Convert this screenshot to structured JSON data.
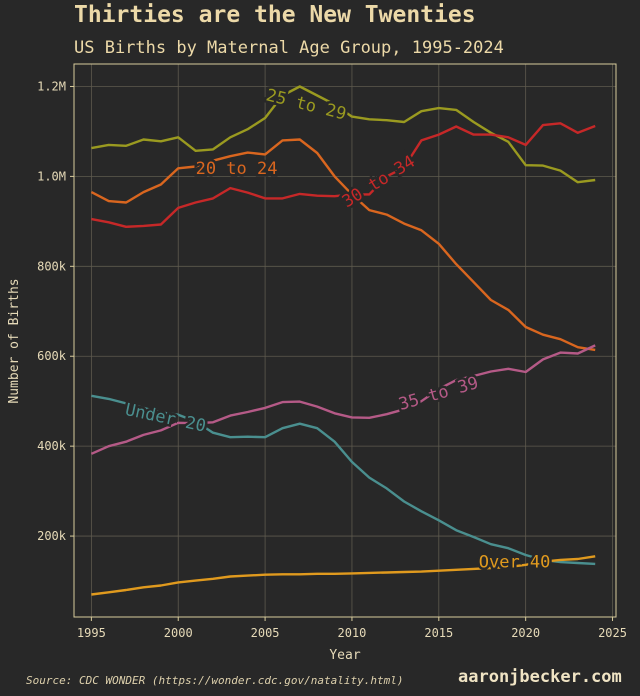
{
  "title": "Thirties are the New Twenties",
  "subtitle": "US Births by Maternal Age Group, 1995-2024",
  "source": "Source: CDC WONDER (https://wonder.cdc.gov/natality.html)",
  "brand": "aaronjbecker.com",
  "chart_data": {
    "type": "line",
    "xlabel": "Year",
    "ylabel": "Number of Births",
    "xlim": [
      1994,
      2025.2
    ],
    "ylim": [
      20000,
      1250000
    ],
    "xticks": [
      1995,
      2000,
      2005,
      2010,
      2015,
      2020,
      2025
    ],
    "yticks": [
      200000,
      400000,
      600000,
      800000,
      1000000,
      1200000
    ],
    "ytick_labels": [
      "200k",
      "400k",
      "600k",
      "800k",
      "1.0M",
      "1.2M"
    ],
    "grid": true,
    "background": "#282828",
    "grid_color": "#5e5a4e",
    "axis_color": "#d8cc9c",
    "x": [
      1995,
      1996,
      1997,
      1998,
      1999,
      2000,
      2001,
      2002,
      2003,
      2004,
      2005,
      2006,
      2007,
      2008,
      2009,
      2010,
      2011,
      2012,
      2013,
      2014,
      2015,
      2016,
      2017,
      2018,
      2019,
      2020,
      2021,
      2022,
      2023,
      2024
    ],
    "series": [
      {
        "name": "Under 20",
        "color": "#4a8f8f",
        "label_x": 1996.9,
        "label_y": 470000,
        "label_angle": 12,
        "values": [
          512000,
          505000,
          495000,
          485000,
          475000,
          470000,
          455000,
          430000,
          420000,
          421000,
          420000,
          440000,
          450000,
          440000,
          410000,
          365000,
          330000,
          306000,
          277000,
          255000,
          235000,
          213000,
          198000,
          182000,
          173000,
          158000,
          147000,
          142000,
          140000,
          138000
        ]
      },
      {
        "name": "20 to 24",
        "color": "#d9661f",
        "label_x": 2001.0,
        "label_y": 1005000,
        "label_angle": 0,
        "values": [
          965000,
          945000,
          942000,
          965000,
          982000,
          1018000,
          1022000,
          1035000,
          1045000,
          1053000,
          1049000,
          1080000,
          1082000,
          1052000,
          1000000,
          960000,
          925000,
          915000,
          895000,
          880000,
          850000,
          805000,
          765000,
          725000,
          703000,
          665000,
          648000,
          638000,
          620000,
          614000
        ]
      },
      {
        "name": "25 to 29",
        "color": "#9a9a20",
        "label_x": 2005.0,
        "label_y": 1170000,
        "label_angle": 14,
        "values": [
          1063000,
          1070000,
          1068000,
          1082000,
          1078000,
          1087000,
          1057000,
          1060000,
          1087000,
          1105000,
          1130000,
          1180000,
          1200000,
          1180000,
          1160000,
          1133000,
          1127000,
          1125000,
          1121000,
          1145000,
          1152000,
          1148000,
          1121000,
          1097000,
          1077000,
          1025000,
          1024000,
          1013000,
          987000,
          992000
        ]
      },
      {
        "name": "30 to 34",
        "color": "#c62828",
        "label_x": 2009.7,
        "label_y": 930000,
        "label_angle": -32,
        "values": [
          905000,
          898000,
          888000,
          890000,
          893000,
          930000,
          942000,
          951000,
          974000,
          964000,
          951000,
          951000,
          961000,
          957000,
          956000,
          960000,
          960000,
          1000000,
          1020000,
          1080000,
          1093000,
          1111000,
          1093000,
          1093000,
          1087000,
          1070000,
          1114000,
          1118000,
          1097000,
          1112000
        ]
      },
      {
        "name": "35 to 39",
        "color": "#b55a87",
        "label_x": 2012.8,
        "label_y": 480000,
        "label_angle": -16,
        "values": [
          383000,
          400000,
          410000,
          425000,
          435000,
          452000,
          451000,
          453000,
          468000,
          476000,
          485000,
          498000,
          499000,
          488000,
          473000,
          464000,
          463000,
          471000,
          482000,
          500000,
          527000,
          547000,
          556000,
          566000,
          572000,
          565000,
          593000,
          608000,
          606000,
          624000
        ]
      },
      {
        "name": "Over 40",
        "color": "#e09a1e",
        "label_x": 2017.3,
        "label_y": 130000,
        "label_angle": 0,
        "values": [
          70000,
          75000,
          80000,
          86000,
          90000,
          97000,
          101000,
          105000,
          110000,
          112000,
          114000,
          115000,
          115000,
          116000,
          116000,
          117000,
          118000,
          119000,
          120000,
          121000,
          123000,
          125000,
          127000,
          129000,
          131000,
          136000,
          143000,
          147000,
          149000,
          155000
        ]
      }
    ]
  }
}
